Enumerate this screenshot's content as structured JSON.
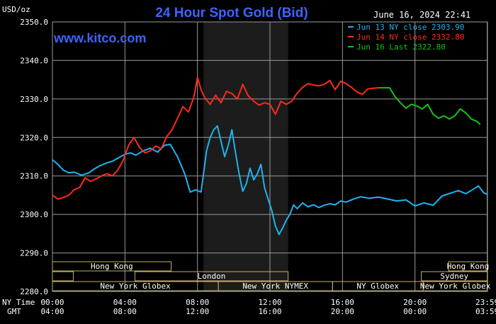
{
  "chart_data": {
    "type": "line",
    "title": "24 Hour Spot Gold (Bid)",
    "unit_label": "USD/oz",
    "website": "www.kitco.com",
    "timestamp": "June 16, 2024 22:41",
    "ylim": [
      2280,
      2350
    ],
    "yticks": [
      "2350.0",
      "2340.0",
      "2330.0",
      "2320.0",
      "2310.0",
      "2300.0",
      "2290.0",
      "2280.0"
    ],
    "ytick_values": [
      2350,
      2340,
      2330,
      2320,
      2310,
      2300,
      2290,
      2280
    ],
    "xlim": [
      0,
      24
    ],
    "x_row_labels": {
      "ny": "NY Time",
      "gmt": "GMT"
    },
    "xticks_ny": [
      "00:00",
      "04:00",
      "08:00",
      "12:00",
      "16:00",
      "20:00",
      "23:59"
    ],
    "xticks_gmt": [
      "04:00",
      "08:00",
      "12:00",
      "16:00",
      "20:00",
      "00:00",
      "03:59"
    ],
    "xtick_hours": [
      0,
      4,
      8,
      12,
      16,
      20,
      23.983
    ],
    "ny_session_shade": [
      8.33,
      13.0
    ],
    "grid": true,
    "legend_position": "top-right",
    "colors": {
      "background": "#000000",
      "grid": "#9a9a9a",
      "title": "#3d63ff",
      "website": "#3d63ff",
      "market_box": "#c8b15a",
      "shade": "#1c1c1c"
    },
    "series": [
      {
        "name": "Jun 13 NY close 2303.90",
        "color": "#1fb3ee",
        "x": [
          0,
          0.3,
          0.6,
          0.9,
          1.2,
          1.6,
          2.0,
          2.3,
          2.6,
          3.0,
          3.3,
          3.6,
          4.0,
          4.3,
          4.6,
          5.0,
          5.4,
          5.8,
          6.2,
          6.5,
          6.9,
          7.3,
          7.6,
          7.9,
          8.2,
          8.5,
          8.7,
          8.9,
          9.1,
          9.3,
          9.5,
          9.7,
          9.9,
          10.1,
          10.3,
          10.5,
          10.7,
          10.9,
          11.1,
          11.3,
          11.5,
          11.7,
          11.9,
          12.1,
          12.3,
          12.5,
          12.7,
          12.9,
          13.1,
          13.3,
          13.5,
          13.8,
          14.1,
          14.4,
          14.7,
          15.0,
          15.3,
          15.6,
          15.9,
          16.2,
          16.6,
          17.0,
          17.5,
          18.0,
          18.5,
          19.0,
          19.5,
          20.0,
          20.5,
          21.0,
          21.5,
          22.0,
          22.4,
          22.8,
          23.2,
          23.5,
          23.8,
          24.0
        ],
        "values": [
          2314.2,
          2313.0,
          2311.5,
          2310.8,
          2311.0,
          2310.2,
          2310.8,
          2311.8,
          2312.6,
          2313.4,
          2313.8,
          2314.6,
          2315.6,
          2316.0,
          2315.4,
          2316.5,
          2317.2,
          2316.2,
          2318.0,
          2318.2,
          2315.0,
          2310.5,
          2305.8,
          2306.4,
          2305.8,
          2316.5,
          2320.0,
          2322.0,
          2323.0,
          2319.0,
          2315.0,
          2318.0,
          2322.0,
          2316.0,
          2310.5,
          2306.0,
          2308.0,
          2312.0,
          2309.0,
          2310.5,
          2313.0,
          2307.0,
          2304.0,
          2301.0,
          2297.0,
          2294.8,
          2296.5,
          2298.5,
          2300.0,
          2302.5,
          2301.5,
          2303.0,
          2302.0,
          2302.5,
          2301.8,
          2302.4,
          2302.8,
          2302.5,
          2303.5,
          2303.2,
          2304.0,
          2304.6,
          2304.2,
          2304.5,
          2304.0,
          2303.5,
          2303.8,
          2302.2,
          2303.0,
          2302.4,
          2304.8,
          2305.6,
          2306.2,
          2305.4,
          2306.5,
          2307.4,
          2305.6,
          2305.2
        ]
      },
      {
        "name": "Jun 14 NY close 2332.80",
        "color": "#ff2a1a",
        "x": [
          0,
          0.3,
          0.6,
          0.9,
          1.2,
          1.5,
          1.8,
          2.1,
          2.4,
          2.7,
          3.0,
          3.3,
          3.6,
          3.9,
          4.2,
          4.5,
          4.8,
          5.1,
          5.4,
          5.7,
          6.0,
          6.3,
          6.6,
          6.9,
          7.2,
          7.5,
          7.8,
          8.0,
          8.2,
          8.4,
          8.7,
          9.0,
          9.3,
          9.6,
          9.9,
          10.2,
          10.5,
          10.8,
          11.1,
          11.4,
          11.7,
          12.0,
          12.3,
          12.6,
          12.9,
          13.2,
          13.5,
          13.8,
          14.1,
          14.4,
          14.7,
          15.0,
          15.3,
          15.6,
          15.9,
          16.2,
          16.5,
          16.8,
          17.1,
          17.4,
          17.7,
          18.0
        ],
        "values": [
          2305.0,
          2304.0,
          2304.4,
          2305.0,
          2306.4,
          2307.0,
          2309.5,
          2308.6,
          2309.2,
          2310.0,
          2310.6,
          2310.0,
          2311.5,
          2314.0,
          2318.0,
          2320.0,
          2317.4,
          2316.0,
          2316.5,
          2317.8,
          2317.0,
          2320.2,
          2322.0,
          2325.0,
          2328.0,
          2326.6,
          2330.5,
          2335.6,
          2332.4,
          2330.4,
          2328.6,
          2331.0,
          2329.0,
          2332.0,
          2331.4,
          2330.0,
          2333.8,
          2330.8,
          2329.4,
          2328.4,
          2329.0,
          2328.6,
          2326.0,
          2329.4,
          2328.6,
          2329.4,
          2331.5,
          2333.0,
          2334.0,
          2333.6,
          2333.4,
          2333.8,
          2334.8,
          2332.4,
          2334.6,
          2334.0,
          2333.0,
          2331.8,
          2331.2,
          2332.6,
          2332.8,
          2332.9
        ]
      },
      {
        "name": "Jun 16 Last 2322.80",
        "color": "#14c214",
        "x": [
          18.0,
          18.6,
          18.9,
          19.2,
          19.5,
          19.8,
          20.1,
          20.4,
          20.7,
          21.0,
          21.3,
          21.6,
          21.9,
          22.2,
          22.5,
          22.8,
          23.1,
          23.4,
          23.6
        ],
        "values": [
          2332.9,
          2332.9,
          2330.6,
          2329.0,
          2327.6,
          2328.6,
          2328.2,
          2327.4,
          2328.6,
          2326.0,
          2325.0,
          2325.6,
          2324.8,
          2325.6,
          2327.4,
          2326.4,
          2324.8,
          2324.2,
          2323.4
        ]
      }
    ],
    "market_rows": [
      [
        {
          "label": "Hong Kong",
          "start": 0,
          "end": 6.55
        },
        {
          "label": "Hong Kong",
          "start": 21.85,
          "end": 24
        }
      ],
      [
        {
          "label": "",
          "start": 0,
          "end": 1.15
        },
        {
          "label": "London",
          "start": 4.55,
          "end": 13.0
        },
        {
          "label": "Sydney",
          "start": 20.35,
          "end": 24
        }
      ],
      [
        {
          "label": "New York Globex",
          "start": 0,
          "end": 9.15
        },
        {
          "label": "New York NYMEX",
          "start": 9.15,
          "end": 15.45
        },
        {
          "label": "NY Globex",
          "start": 15.45,
          "end": 20.45
        },
        {
          "label": "New York Globex",
          "start": 20.45,
          "end": 24
        }
      ]
    ]
  }
}
